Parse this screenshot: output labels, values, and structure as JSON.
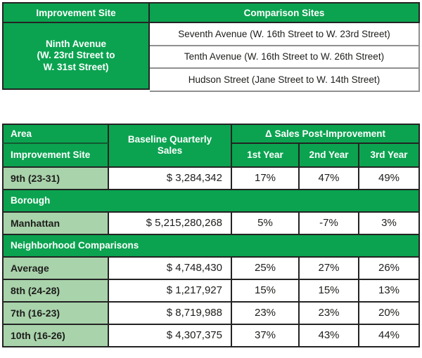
{
  "colors": {
    "green": "#0ba350",
    "green_light": "#a9d3ab",
    "border": "#232323",
    "border_gray": "#8f8f8f",
    "divider": "#125a30",
    "text": "#1d1d1b"
  },
  "site_table": {
    "improvement_header": "Improvement Site",
    "comparison_header": "Comparison Sites",
    "improvement_site": "Ninth Avenue\n(W. 23rd Street to\nW. 31st Street)",
    "comparison_sites": [
      "Seventh Avenue (W. 16th Street to W. 23rd Street)",
      "Tenth Avenue (W. 16th Street to W. 26th Street)",
      "Hudson Street (Jane Street to W. 14th Street)"
    ]
  },
  "sales_table": {
    "header": {
      "area": "Area",
      "improvement_site": "Improvement Site",
      "baseline": "Baseline Quarterly\nSales",
      "delta": "Δ Sales Post-Improvement",
      "year1": "1st Year",
      "year2": "2nd Year",
      "year3": "3rd Year"
    },
    "improvement_row": {
      "label": "9th (23-31)",
      "baseline": "$ 3,284,342",
      "year1": "17%",
      "year2": "47%",
      "year3": "49%"
    },
    "borough_section": {
      "label": "Borough"
    },
    "borough_row": {
      "label": "Manhattan",
      "baseline": "$ 5,215,280,268",
      "year1": "5%",
      "year2": "-7%",
      "year3": "3%"
    },
    "neighborhood_section": {
      "label": "Neighborhood Comparisons"
    },
    "neighborhood_rows": [
      {
        "label": "Average",
        "baseline": "$ 4,748,430",
        "year1": "25%",
        "year2": "27%",
        "year3": "26%"
      },
      {
        "label": "8th (24-28)",
        "baseline": "$ 1,217,927",
        "year1": "15%",
        "year2": "15%",
        "year3": "13%"
      },
      {
        "label": "7th (16-23)",
        "baseline": "$ 8,719,988",
        "year1": "23%",
        "year2": "23%",
        "year3": "20%"
      },
      {
        "label": "10th (16-26)",
        "baseline": "$ 4,307,375",
        "year1": "37%",
        "year2": "43%",
        "year3": "44%"
      }
    ]
  }
}
